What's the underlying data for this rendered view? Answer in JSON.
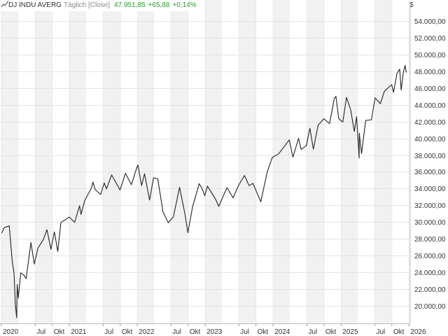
{
  "header": {
    "instrument": "DJ INDU AVERG",
    "mode": "Täglich [Close]",
    "last": "47.951,85",
    "change": "+65,88",
    "change_pct": "+0,14%",
    "positive_color": "#2a9d2a",
    "chart_icon": "line-chart-icon"
  },
  "currency_symbol": "$",
  "chart_data": {
    "type": "line",
    "title": "",
    "xlabel": "",
    "ylabel": "",
    "x_range": [
      "2020-01-01",
      "2025-12-31"
    ],
    "ylim": [
      18000,
      55500
    ],
    "y_ticks": [
      20000,
      22000,
      24000,
      26000,
      28000,
      30000,
      32000,
      34000,
      36000,
      38000,
      40000,
      42000,
      44000,
      46000,
      48000,
      50000,
      52000,
      54000
    ],
    "y_tick_labels": [
      "20.000,00",
      "22.000,00",
      "24.000,00",
      "26.000,00",
      "28.000,00",
      "30.000,00",
      "32.000,00",
      "34.000,00",
      "36.000,00",
      "38.000,00",
      "40.000,00",
      "42.000,00",
      "44.000,00",
      "46.000,00",
      "48.000,00",
      "50.000,00",
      "52.000,00",
      "54.000,00"
    ],
    "x_ticks": [
      {
        "date": "2020-01-01",
        "label": "2020"
      },
      {
        "date": "2020-07-01",
        "label": "Jul"
      },
      {
        "date": "2020-10-01",
        "label": "Okt"
      },
      {
        "date": "2021-01-01",
        "label": "2021"
      },
      {
        "date": "2021-07-01",
        "label": "Jul"
      },
      {
        "date": "2021-10-01",
        "label": "Okt"
      },
      {
        "date": "2022-01-01",
        "label": "2022"
      },
      {
        "date": "2022-07-01",
        "label": "Jul"
      },
      {
        "date": "2022-10-01",
        "label": "Okt"
      },
      {
        "date": "2023-01-01",
        "label": "2023"
      },
      {
        "date": "2023-07-01",
        "label": "Jul"
      },
      {
        "date": "2023-10-01",
        "label": "Okt"
      },
      {
        "date": "2024-01-01",
        "label": "2024"
      },
      {
        "date": "2024-07-01",
        "label": "Jul"
      },
      {
        "date": "2024-10-01",
        "label": "Okt"
      },
      {
        "date": "2025-01-01",
        "label": "2025"
      },
      {
        "date": "2025-07-01",
        "label": "Jul"
      },
      {
        "date": "2025-10-01",
        "label": "Okt"
      },
      {
        "date": "2026-01-01",
        "label": "2026"
      }
    ],
    "grid": true,
    "shaded_quarters": true,
    "line_color": "#222222",
    "series": [
      {
        "points": [
          [
            "2020-01-02",
            28700
          ],
          [
            "2020-01-17",
            29350
          ],
          [
            "2020-02-12",
            29550
          ],
          [
            "2020-02-28",
            25400
          ],
          [
            "2020-03-09",
            23850
          ],
          [
            "2020-03-16",
            20190
          ],
          [
            "2020-03-23",
            18590
          ],
          [
            "2020-03-26",
            22550
          ],
          [
            "2020-04-01",
            20950
          ],
          [
            "2020-04-14",
            23950
          ],
          [
            "2020-05-01",
            23700
          ],
          [
            "2020-05-13",
            23250
          ],
          [
            "2020-06-08",
            27570
          ],
          [
            "2020-06-26",
            25000
          ],
          [
            "2020-07-15",
            26870
          ],
          [
            "2020-08-14",
            27930
          ],
          [
            "2020-09-02",
            29100
          ],
          [
            "2020-09-23",
            26760
          ],
          [
            "2020-10-12",
            28840
          ],
          [
            "2020-10-30",
            26500
          ],
          [
            "2020-11-16",
            29950
          ],
          [
            "2020-12-31",
            30600
          ],
          [
            "2021-01-29",
            29980
          ],
          [
            "2021-02-24",
            31960
          ],
          [
            "2021-03-04",
            30920
          ],
          [
            "2021-03-25",
            32620
          ],
          [
            "2021-04-29",
            34060
          ],
          [
            "2021-05-07",
            34770
          ],
          [
            "2021-05-19",
            33900
          ],
          [
            "2021-06-18",
            33290
          ],
          [
            "2021-07-07",
            34680
          ],
          [
            "2021-07-19",
            33960
          ],
          [
            "2021-08-16",
            35630
          ],
          [
            "2021-09-30",
            33840
          ],
          [
            "2021-10-29",
            35820
          ],
          [
            "2021-11-30",
            34480
          ],
          [
            "2021-12-29",
            36490
          ],
          [
            "2022-01-04",
            36800
          ],
          [
            "2022-01-24",
            34360
          ],
          [
            "2022-02-09",
            35770
          ],
          [
            "2022-03-08",
            32630
          ],
          [
            "2022-03-29",
            35290
          ],
          [
            "2022-04-21",
            35160
          ],
          [
            "2022-05-19",
            31250
          ],
          [
            "2022-06-16",
            29930
          ],
          [
            "2022-07-14",
            30630
          ],
          [
            "2022-08-16",
            34150
          ],
          [
            "2022-09-13",
            31100
          ],
          [
            "2022-09-30",
            28730
          ],
          [
            "2022-10-25",
            31840
          ],
          [
            "2022-11-30",
            34590
          ],
          [
            "2022-12-13",
            34100
          ],
          [
            "2022-12-30",
            33150
          ],
          [
            "2023-01-13",
            34300
          ],
          [
            "2023-02-28",
            32650
          ],
          [
            "2023-03-15",
            31870
          ],
          [
            "2023-04-28",
            34100
          ],
          [
            "2023-05-31",
            32900
          ],
          [
            "2023-06-30",
            34400
          ],
          [
            "2023-07-31",
            35560
          ],
          [
            "2023-08-25",
            34350
          ],
          [
            "2023-09-15",
            34620
          ],
          [
            "2023-10-27",
            32420
          ],
          [
            "2023-11-30",
            35950
          ],
          [
            "2023-12-28",
            37710
          ],
          [
            "2024-01-31",
            38150
          ],
          [
            "2024-02-29",
            38990
          ],
          [
            "2024-03-28",
            39810
          ],
          [
            "2024-04-17",
            37750
          ],
          [
            "2024-05-17",
            40000
          ],
          [
            "2024-05-31",
            38680
          ],
          [
            "2024-06-28",
            39120
          ],
          [
            "2024-07-17",
            41200
          ],
          [
            "2024-08-05",
            38700
          ],
          [
            "2024-08-30",
            41560
          ],
          [
            "2024-09-30",
            42330
          ],
          [
            "2024-10-31",
            41760
          ],
          [
            "2024-11-25",
            44730
          ],
          [
            "2024-12-04",
            45010
          ],
          [
            "2024-12-19",
            42340
          ],
          [
            "2025-01-10",
            41940
          ],
          [
            "2025-01-30",
            44880
          ],
          [
            "2025-02-21",
            43430
          ],
          [
            "2025-03-13",
            40810
          ],
          [
            "2025-03-25",
            42580
          ],
          [
            "2025-04-08",
            37640
          ],
          [
            "2025-04-09",
            40610
          ],
          [
            "2025-04-21",
            38170
          ],
          [
            "2025-05-13",
            42140
          ],
          [
            "2025-06-13",
            42200
          ],
          [
            "2025-07-03",
            44830
          ],
          [
            "2025-07-31",
            44130
          ],
          [
            "2025-08-22",
            45630
          ],
          [
            "2025-09-30",
            46400
          ],
          [
            "2025-10-10",
            45480
          ],
          [
            "2025-10-28",
            47700
          ],
          [
            "2025-11-12",
            48250
          ],
          [
            "2025-11-20",
            45750
          ],
          [
            "2025-12-02",
            47900
          ],
          [
            "2025-12-11",
            48700
          ],
          [
            "2025-12-17",
            47890
          ],
          [
            "2025-12-19",
            47952
          ]
        ]
      }
    ]
  }
}
